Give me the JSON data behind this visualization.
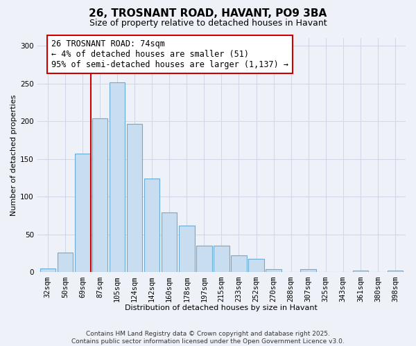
{
  "title": "26, TROSNANT ROAD, HAVANT, PO9 3BA",
  "subtitle": "Size of property relative to detached houses in Havant",
  "xlabel": "Distribution of detached houses by size in Havant",
  "ylabel": "Number of detached properties",
  "bar_labels": [
    "32sqm",
    "50sqm",
    "69sqm",
    "87sqm",
    "105sqm",
    "124sqm",
    "142sqm",
    "160sqm",
    "178sqm",
    "197sqm",
    "215sqm",
    "233sqm",
    "252sqm",
    "270sqm",
    "288sqm",
    "307sqm",
    "325sqm",
    "343sqm",
    "361sqm",
    "380sqm",
    "398sqm"
  ],
  "bar_values": [
    5,
    26,
    157,
    204,
    251,
    196,
    124,
    79,
    62,
    35,
    35,
    22,
    18,
    4,
    0,
    4,
    0,
    0,
    2,
    0,
    2
  ],
  "bar_color": "#c9ddf0",
  "bar_edge_color": "#6aaad4",
  "vline_x": 2.5,
  "property_line_label": "26 TROSNANT ROAD: 74sqm",
  "annotation_smaller": "← 4% of detached houses are smaller (51)",
  "annotation_larger": "95% of semi-detached houses are larger (1,137) →",
  "annotation_box_color": "white",
  "annotation_box_edge": "#cc0000",
  "vline_color": "#cc0000",
  "ylim": [
    0,
    310
  ],
  "yticks": [
    0,
    50,
    100,
    150,
    200,
    250,
    300
  ],
  "footer_line1": "Contains HM Land Registry data © Crown copyright and database right 2025.",
  "footer_line2": "Contains public sector information licensed under the Open Government Licence v3.0.",
  "bg_color": "#eef2f8",
  "grid_color": "#d0d8e8",
  "title_fontsize": 11,
  "subtitle_fontsize": 9,
  "axis_label_fontsize": 8,
  "tick_fontsize": 7.5,
  "footer_fontsize": 6.5,
  "annot_fontsize": 8.5
}
